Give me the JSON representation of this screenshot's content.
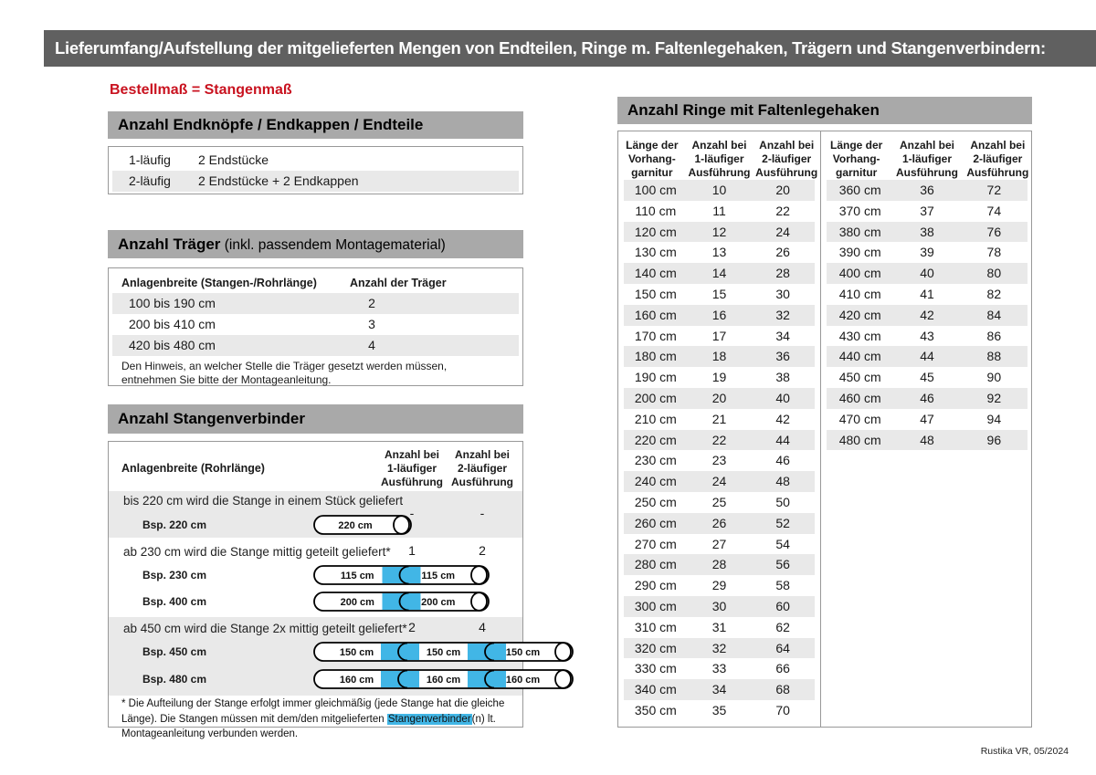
{
  "page": {
    "title": "Lieferumfang/Aufstellung der mitgelieferten Mengen von Endteilen, Ringe m. Faltenlegehaken, Trägern und Stangenverbindern:",
    "subtitle": "Bestellmaß = Stangenmaß",
    "footer": "Rustika VR, 05/2024"
  },
  "colors": {
    "header_bar": "#606060",
    "section_bar": "#a9a9a9",
    "stripe_gray": "#e9e9e9",
    "accent_red": "#c9121f",
    "connector_blue": "#41b6e6",
    "border_gray": "#999999"
  },
  "endteile": {
    "title": "Anzahl Endknöpfe / Endkappen / Endteile",
    "rows": [
      {
        "label": "1-läufig",
        "value": "2 Endstücke"
      },
      {
        "label": "2-läufig",
        "value": "2 Endstücke + 2 Endkappen"
      }
    ]
  },
  "traeger": {
    "title_bold": "Anzahl Träger",
    "title_rest": " (inkl. passendem Montagematerial)",
    "col1": "Anlagenbreite (Stangen-/Rohrlänge)",
    "col2": "Anzahl der Träger",
    "rows": [
      {
        "range": "100 bis 190 cm",
        "count": "2"
      },
      {
        "range": "200 bis 410 cm",
        "count": "3"
      },
      {
        "range": "420 bis 480 cm",
        "count": "4"
      }
    ],
    "note": "Den Hinweis, an welcher Stelle die Träger gesetzt werden müssen, entnehmen Sie bitte der Montageanleitung."
  },
  "verbinder": {
    "title": "Anzahl Stangenverbinder",
    "col1": "Anlagenbreite (Rohrlänge)",
    "col2": [
      "Anzahl bei",
      "1-läufiger",
      "Ausführung"
    ],
    "col3": [
      "Anzahl bei",
      "2-läufiger",
      "Ausführung"
    ],
    "groups": [
      {
        "text": "bis 220 cm wird die Stange in einem Stück geliefert",
        "v1": "-",
        "v2": "-",
        "examples": [
          {
            "label": "Bsp. 220 cm",
            "segments": [
              "220 cm"
            ]
          }
        ]
      },
      {
        "text": "ab 230 cm wird die Stange mittig geteilt geliefert*",
        "v1": "1",
        "v2": "2",
        "examples": [
          {
            "label": "Bsp. 230 cm",
            "segments": [
              "115 cm",
              "115 cm"
            ]
          },
          {
            "label": "Bsp. 400 cm",
            "segments": [
              "200 cm",
              "200 cm"
            ]
          }
        ]
      },
      {
        "text": "ab 450 cm wird die Stange 2x mittig geteilt geliefert*",
        "v1": "2",
        "v2": "4",
        "examples": [
          {
            "label": "Bsp. 450 cm",
            "segments": [
              "150 cm",
              "150 cm",
              "150 cm"
            ]
          },
          {
            "label": "Bsp. 480 cm",
            "segments": [
              "160 cm",
              "160 cm",
              "160 cm"
            ]
          }
        ]
      }
    ],
    "footnote_pre": "* Die Aufteilung der Stange erfolgt immer gleichmäßig (jede Stange hat die gleiche Länge). Die Stangen müssen mit dem/den mitgelieferten ",
    "footnote_highlight": "Stangenverbinder",
    "footnote_post": "(n) lt. Montageanleitung verbunden werden."
  },
  "ringe": {
    "title": "Anzahl Ringe mit Faltenlegehaken",
    "col_headers": [
      [
        "Länge der",
        "Vorhang-",
        "garnitur"
      ],
      [
        "Anzahl bei",
        "1-läufiger",
        "Ausführung"
      ],
      [
        "Anzahl bei",
        "2-läufiger",
        "Ausführung"
      ]
    ],
    "table_left": [
      [
        "100 cm",
        "10",
        "20"
      ],
      [
        "110 cm",
        "11",
        "22"
      ],
      [
        "120 cm",
        "12",
        "24"
      ],
      [
        "130 cm",
        "13",
        "26"
      ],
      [
        "140 cm",
        "14",
        "28"
      ],
      [
        "150 cm",
        "15",
        "30"
      ],
      [
        "160 cm",
        "16",
        "32"
      ],
      [
        "170 cm",
        "17",
        "34"
      ],
      [
        "180 cm",
        "18",
        "36"
      ],
      [
        "190 cm",
        "19",
        "38"
      ],
      [
        "200 cm",
        "20",
        "40"
      ],
      [
        "210 cm",
        "21",
        "42"
      ],
      [
        "220 cm",
        "22",
        "44"
      ],
      [
        "230 cm",
        "23",
        "46"
      ],
      [
        "240 cm",
        "24",
        "48"
      ],
      [
        "250 cm",
        "25",
        "50"
      ],
      [
        "260 cm",
        "26",
        "52"
      ],
      [
        "270 cm",
        "27",
        "54"
      ],
      [
        "280 cm",
        "28",
        "56"
      ],
      [
        "290 cm",
        "29",
        "58"
      ],
      [
        "300 cm",
        "30",
        "60"
      ],
      [
        "310 cm",
        "31",
        "62"
      ],
      [
        "320 cm",
        "32",
        "64"
      ],
      [
        "330 cm",
        "33",
        "66"
      ],
      [
        "340 cm",
        "34",
        "68"
      ],
      [
        "350 cm",
        "35",
        "70"
      ]
    ],
    "table_right": [
      [
        "360 cm",
        "36",
        "72"
      ],
      [
        "370 cm",
        "37",
        "74"
      ],
      [
        "380 cm",
        "38",
        "76"
      ],
      [
        "390 cm",
        "39",
        "78"
      ],
      [
        "400 cm",
        "40",
        "80"
      ],
      [
        "410 cm",
        "41",
        "82"
      ],
      [
        "420 cm",
        "42",
        "84"
      ],
      [
        "430 cm",
        "43",
        "86"
      ],
      [
        "440 cm",
        "44",
        "88"
      ],
      [
        "450 cm",
        "45",
        "90"
      ],
      [
        "460 cm",
        "46",
        "92"
      ],
      [
        "470 cm",
        "47",
        "94"
      ],
      [
        "480 cm",
        "48",
        "96"
      ]
    ]
  }
}
